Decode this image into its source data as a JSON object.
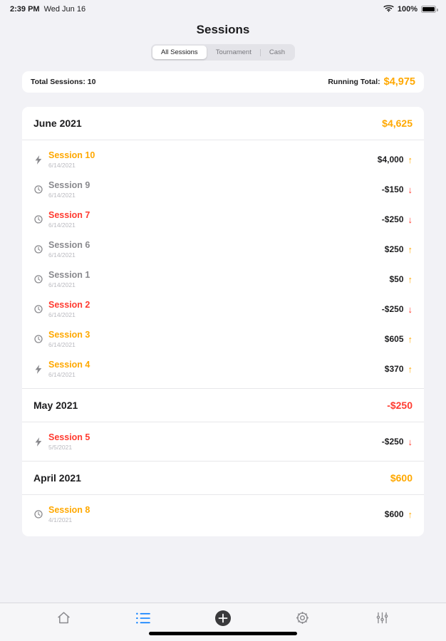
{
  "status_bar": {
    "time": "2:39 PM",
    "date": "Wed Jun 16",
    "battery": "100%"
  },
  "header": {
    "title": "Sessions"
  },
  "tabs": [
    {
      "label": "All Sessions",
      "selected": true
    },
    {
      "label": "Tournament",
      "selected": false
    },
    {
      "label": "Cash",
      "selected": false
    }
  ],
  "summary": {
    "total_sessions": "Total Sessions: 10",
    "running_total_label": "Running Total:",
    "running_total_value": "$4,975"
  },
  "colors": {
    "accent_orange": "#FFA800",
    "negative_red": "#FF3B30",
    "neutral_gray": "#8A8A8E",
    "tab_blue": "#007AFF"
  },
  "groups": [
    {
      "month": "June 2021",
      "total": "$4,625",
      "total_tone": "positive",
      "sessions": [
        {
          "icon": "bolt-icon",
          "name": "Session 10",
          "name_tone": "positive",
          "date": "6/14/2021",
          "amount": "$4,000",
          "direction": "up"
        },
        {
          "icon": "clock-icon",
          "name": "Session 9",
          "name_tone": "neutral",
          "date": "6/14/2021",
          "amount": "-$150",
          "direction": "down"
        },
        {
          "icon": "clock-icon",
          "name": "Session 7",
          "name_tone": "negative",
          "date": "6/14/2021",
          "amount": "-$250",
          "direction": "down"
        },
        {
          "icon": "clock-icon",
          "name": "Session 6",
          "name_tone": "neutral",
          "date": "6/14/2021",
          "amount": "$250",
          "direction": "up"
        },
        {
          "icon": "clock-icon",
          "name": "Session 1",
          "name_tone": "neutral",
          "date": "6/14/2021",
          "amount": "$50",
          "direction": "up"
        },
        {
          "icon": "clock-icon",
          "name": "Session 2",
          "name_tone": "negative",
          "date": "6/14/2021",
          "amount": "-$250",
          "direction": "down"
        },
        {
          "icon": "clock-icon",
          "name": "Session 3",
          "name_tone": "positive",
          "date": "6/14/2021",
          "amount": "$605",
          "direction": "up"
        },
        {
          "icon": "bolt-icon",
          "name": "Session 4",
          "name_tone": "positive",
          "date": "6/14/2021",
          "amount": "$370",
          "direction": "up"
        }
      ]
    },
    {
      "month": "May 2021",
      "total": "-$250",
      "total_tone": "negative",
      "sessions": [
        {
          "icon": "bolt-icon",
          "name": "Session 5",
          "name_tone": "negative",
          "date": "5/5/2021",
          "amount": "-$250",
          "direction": "down"
        }
      ]
    },
    {
      "month": "April 2021",
      "total": "$600",
      "total_tone": "positive",
      "sessions": [
        {
          "icon": "clock-icon",
          "name": "Session 8",
          "name_tone": "positive",
          "date": "4/1/2021",
          "amount": "$600",
          "direction": "up"
        }
      ]
    }
  ],
  "tab_bar": {
    "items": [
      {
        "name": "home",
        "selected": false
      },
      {
        "name": "sessions",
        "selected": true
      },
      {
        "name": "add",
        "selected": false
      },
      {
        "name": "settings",
        "selected": false
      },
      {
        "name": "filters",
        "selected": false
      }
    ]
  }
}
